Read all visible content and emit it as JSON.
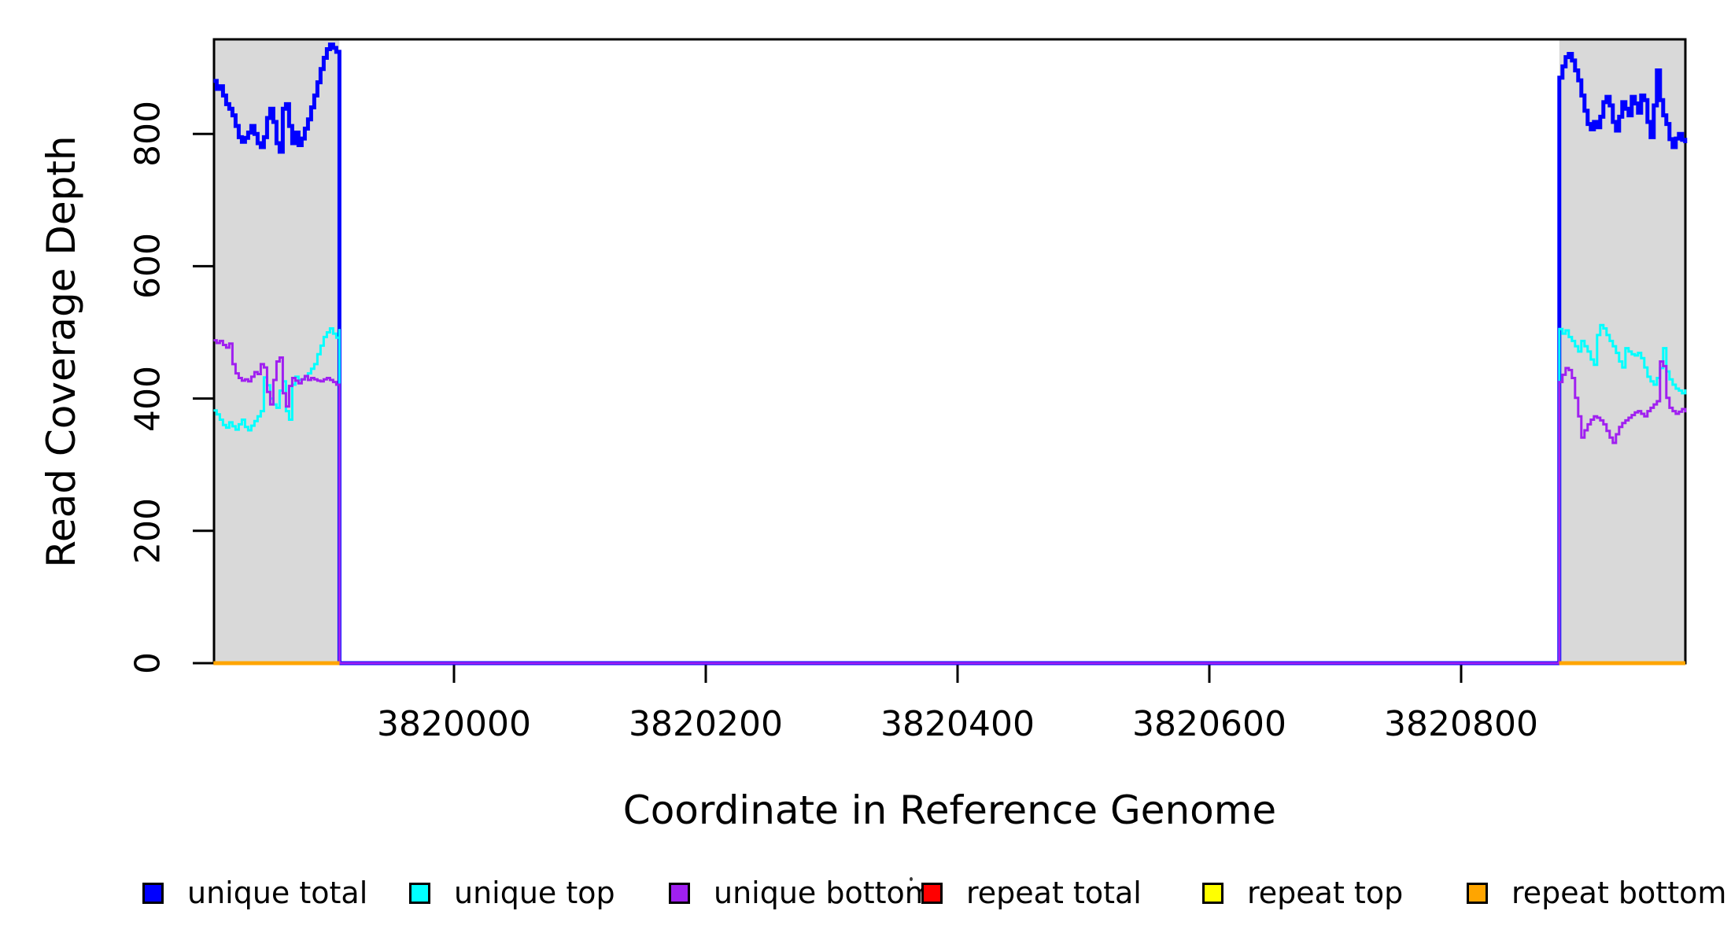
{
  "figure": {
    "background_color": "#ffffff",
    "shaded_band_color": "#d9d9d9",
    "box_color": "#000000"
  },
  "chart_data": {
    "type": "line",
    "title": "",
    "xlabel": "Coordinate in Reference Genome",
    "ylabel": "Read Coverage Depth",
    "xlim": [
      3819809,
      3820978
    ],
    "ylim": [
      0,
      943
    ],
    "x_ticks": [
      3820000,
      3820200,
      3820400,
      3820600,
      3820800
    ],
    "y_ticks": [
      0,
      200,
      400,
      600,
      800
    ],
    "grid": false,
    "legend_position": "bottom",
    "line_style": "steps",
    "step_size": 2.5,
    "shaded_regions": [
      {
        "x0": 3819809,
        "x1": 3819909
      },
      {
        "x0": 3820878,
        "x1": 3820978
      }
    ],
    "series": [
      {
        "name": "unique total",
        "color": "#0000FF",
        "line_width": 5,
        "left_x0": 3819809,
        "left_values": [
          880,
          868,
          872,
          858,
          845,
          838,
          828,
          812,
          795,
          788,
          794,
          802,
          812,
          800,
          786,
          780,
          795,
          824,
          838,
          818,
          786,
          773,
          838,
          845,
          812,
          786,
          802,
          783,
          793,
          808,
          822,
          840,
          858,
          878,
          898,
          915,
          928,
          935,
          930,
          924,
          916
        ],
        "zero_span": [
          3819909,
          3820878
        ],
        "right_x0": 3820878,
        "right_values": [
          885,
          902,
          916,
          921,
          911,
          896,
          881,
          858,
          835,
          815,
          807,
          818,
          810,
          826,
          848,
          856,
          843,
          818,
          805,
          826,
          848,
          838,
          828,
          856,
          846,
          832,
          858,
          851,
          818,
          795,
          843,
          896,
          851,
          828,
          815,
          792,
          780,
          793,
          800,
          791,
          786
        ]
      },
      {
        "name": "unique top",
        "color": "#00FFFF",
        "line_width": 3,
        "left_x0": 3819809,
        "left_values": [
          382,
          376,
          368,
          360,
          356,
          364,
          358,
          353,
          361,
          368,
          357,
          352,
          359,
          366,
          373,
          381,
          432,
          420,
          400,
          391,
          386,
          412,
          426,
          381,
          368,
          421,
          433,
          428,
          429,
          433,
          438,
          445,
          452,
          467,
          480,
          493,
          500,
          506,
          498,
          492,
          505
        ],
        "zero_span": [
          3819909,
          3820878
        ],
        "right_x0": 3820878,
        "right_values": [
          505,
          498,
          503,
          493,
          487,
          479,
          471,
          487,
          479,
          471,
          459,
          451,
          496,
          511,
          506,
          496,
          487,
          479,
          469,
          456,
          447,
          476,
          471,
          467,
          465,
          469,
          461,
          447,
          433,
          426,
          421,
          431,
          446,
          476,
          441,
          429,
          421,
          415,
          412,
          408,
          414
        ]
      },
      {
        "name": "unique bottom",
        "color": "#A020F0",
        "line_width": 3,
        "left_x0": 3819809,
        "left_values": [
          488,
          484,
          487,
          481,
          477,
          483,
          452,
          438,
          431,
          427,
          429,
          426,
          433,
          440,
          437,
          452,
          447,
          410,
          391,
          428,
          456,
          462,
          408,
          388,
          419,
          431,
          427,
          423,
          429,
          434,
          428,
          431,
          429,
          427,
          426,
          429,
          431,
          428,
          425,
          421,
          418
        ],
        "zero_span": [
          3819909,
          3820878
        ],
        "right_x0": 3820878,
        "right_values": [
          425,
          436,
          446,
          443,
          431,
          401,
          373,
          341,
          352,
          361,
          368,
          373,
          371,
          367,
          361,
          351,
          341,
          333,
          346,
          357,
          363,
          367,
          371,
          375,
          379,
          381,
          377,
          373,
          381,
          386,
          391,
          396,
          456,
          449,
          401,
          386,
          381,
          377,
          380,
          384,
          379
        ]
      },
      {
        "name": "repeat total",
        "color": "#FF0000",
        "line_width": 5,
        "zero_spans": [
          [
            3819809,
            3819909
          ],
          [
            3820878,
            3820978
          ]
        ]
      },
      {
        "name": "repeat top",
        "color": "#FFFF00",
        "line_width": 4,
        "zero_spans": [
          [
            3819809,
            3819909
          ],
          [
            3820878,
            3820978
          ]
        ]
      },
      {
        "name": "repeat bottom",
        "color": "#FFA500",
        "line_width": 5,
        "zero_spans": [
          [
            3819809,
            3819909
          ],
          [
            3820878,
            3820978
          ]
        ]
      }
    ],
    "legend": [
      {
        "label": "unique total",
        "color": "#0000FF"
      },
      {
        "label": "unique top",
        "color": "#00FFFF"
      },
      {
        "label": "unique bottom",
        "color": "#A020F0"
      },
      {
        "label": "repeat total",
        "color": "#FF0000"
      },
      {
        "label": "repeat top",
        "color": "#FFFF00"
      },
      {
        "label": "repeat bottom",
        "color": "#FFA500"
      }
    ]
  }
}
